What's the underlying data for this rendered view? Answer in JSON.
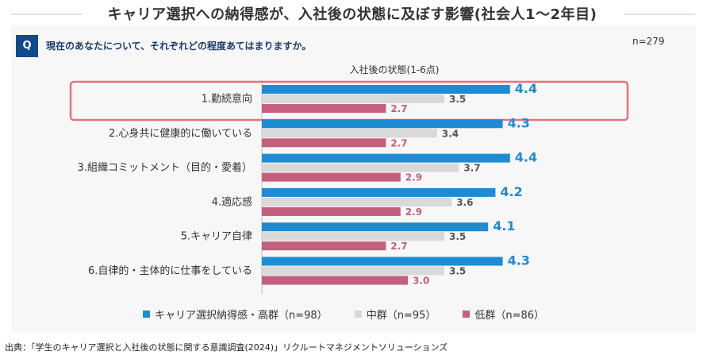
{
  "title": "キャリア選択への納得感が、入社後の状態に及ぼす影響(社会人1～2年目)",
  "question": {
    "badge": "Q",
    "text": "現在のあなたについて、それぞれどの程度あてはまりますか。"
  },
  "sample": "n=279",
  "source": "出典：「学生のキャリア選択と入社後の状態に関する意識調査(2024)」リクルートマネジメントソリューションズ",
  "colors": {
    "high": "#1f8bd3",
    "mid": "#d9d9d9",
    "low": "#c45f7e",
    "highlight": "#e8707e"
  },
  "chart_data": {
    "type": "bar",
    "orientation": "horizontal",
    "title": "キャリア選択への納得感が、入社後の状態に及ぼす影響(社会人1～2年目)",
    "xlabel": "入社後の状態(1-6点)",
    "xlim": [
      1,
      6
    ],
    "categories": [
      "1.勤続意向",
      "2.心身共に健康的に働いている",
      "3.組織コミットメント（目的・愛着）",
      "4.適応感",
      "5.キャリア自律",
      "6.自律的・主体的に仕事をしている"
    ],
    "series": [
      {
        "name": "キャリア選択納得感・高群（n=98）",
        "values": [
          4.4,
          4.3,
          4.4,
          4.2,
          4.1,
          4.3
        ]
      },
      {
        "name": "中群（n=95）",
        "values": [
          3.5,
          3.4,
          3.7,
          3.6,
          3.5,
          3.5
        ]
      },
      {
        "name": "低群（n=86）",
        "values": [
          2.7,
          2.7,
          2.9,
          2.9,
          2.7,
          3.0
        ]
      }
    ],
    "highlighted_category": "1.勤続意向",
    "legend_position": "bottom"
  }
}
